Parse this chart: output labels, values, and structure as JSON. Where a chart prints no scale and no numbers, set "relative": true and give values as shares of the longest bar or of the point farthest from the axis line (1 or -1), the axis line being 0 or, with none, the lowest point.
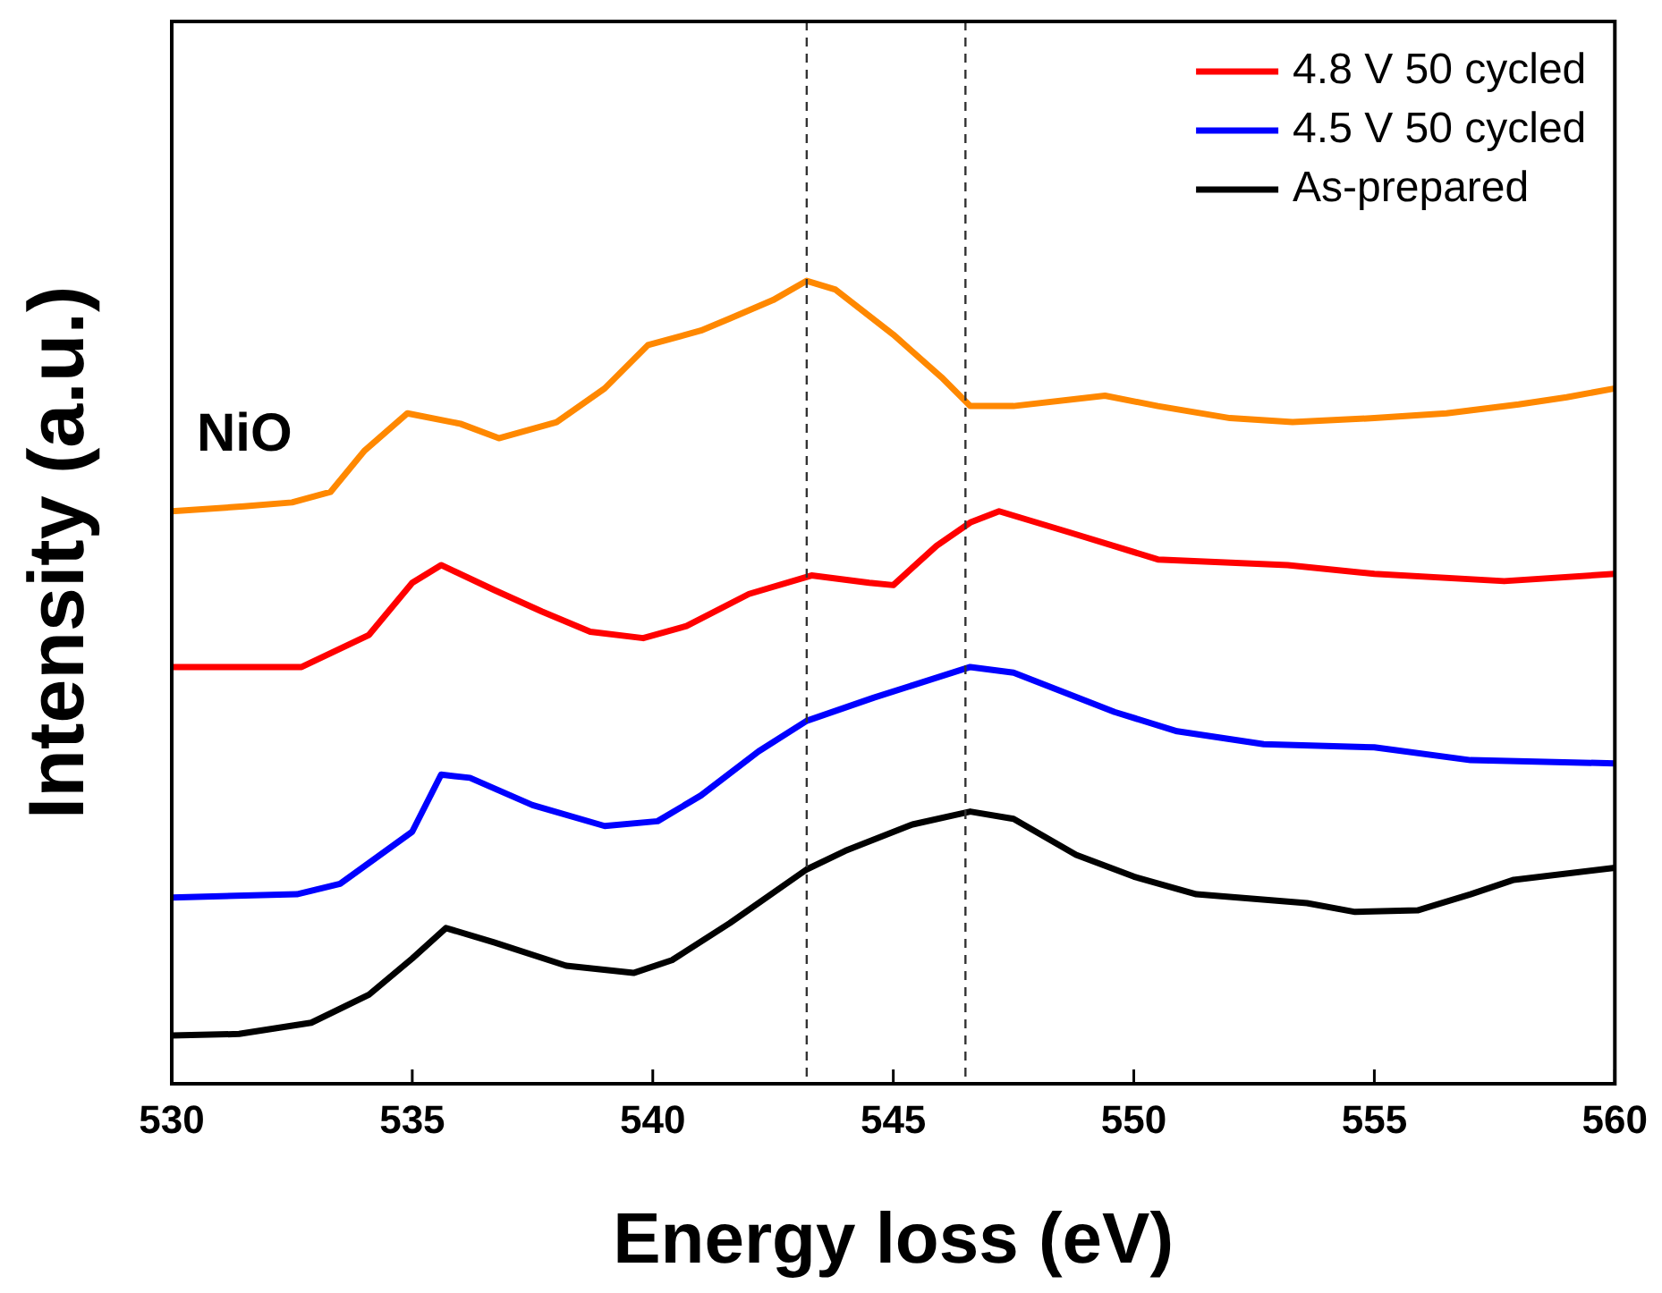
{
  "chart_data": {
    "type": "line",
    "xlabel": "Energy loss (eV)",
    "ylabel": "Intensity (a.u.)",
    "relative": true,
    "xlim": [
      530,
      560
    ],
    "xticks": [
      530,
      535,
      540,
      545,
      550,
      555,
      560
    ],
    "tick_labels": "x",
    "grid": false,
    "legend": "top right",
    "marker": "none",
    "line_style": "solid",
    "annotations": [
      "NiO"
    ],
    "ref_lines": [
      {
        "axis": "x",
        "value": 543.2,
        "color": "#333333",
        "line_style": "dashed"
      },
      {
        "axis": "x",
        "value": 546.5,
        "color": "#333333",
        "line_style": "dashed"
      }
    ],
    "series": [
      {
        "color": "#ff8800",
        "x": [
          530,
          531.5,
          532.5,
          533.3,
          534,
          534.9,
          536,
          536.8,
          538,
          539,
          539.9,
          541,
          541.6,
          542.5,
          543.2,
          543.8,
          545,
          546,
          546.6,
          547.5,
          549.4,
          550.5,
          552,
          553.3,
          555,
          556.5,
          558,
          559,
          560
        ],
        "values": [
          0.713,
          0.719,
          0.724,
          0.737,
          0.788,
          0.835,
          0.822,
          0.804,
          0.824,
          0.866,
          0.92,
          0.938,
          0.953,
          0.976,
          1.0,
          0.989,
          0.933,
          0.88,
          0.844,
          0.844,
          0.857,
          0.844,
          0.829,
          0.824,
          0.829,
          0.835,
          0.846,
          0.855,
          0.866
        ]
      },
      {
        "name": "4.8 V 50 cycled",
        "color": "#ff0000",
        "x": [
          530,
          532.7,
          534.1,
          535,
          535.6,
          536.7,
          537.7,
          538.7,
          539.8,
          540.7,
          542,
          543.3,
          544.5,
          545,
          545.9,
          546.6,
          547.2,
          548.7,
          550.5,
          553.2,
          555,
          557.7,
          560
        ],
        "values": [
          0.519,
          0.519,
          0.559,
          0.624,
          0.646,
          0.615,
          0.588,
          0.563,
          0.555,
          0.57,
          0.61,
          0.633,
          0.624,
          0.621,
          0.67,
          0.699,
          0.713,
          0.686,
          0.653,
          0.646,
          0.635,
          0.626,
          0.635
        ]
      },
      {
        "name": "4.5 V 50 cycled",
        "color": "#0000ff",
        "x": [
          530,
          532.6,
          533.5,
          535,
          535.6,
          536.2,
          537.5,
          539,
          540.1,
          541,
          542.2,
          543.2,
          544.6,
          546.6,
          547.5,
          549.6,
          550.9,
          552.7,
          555,
          557,
          560
        ],
        "values": [
          0.232,
          0.236,
          0.249,
          0.314,
          0.385,
          0.381,
          0.347,
          0.321,
          0.327,
          0.359,
          0.414,
          0.452,
          0.481,
          0.519,
          0.512,
          0.463,
          0.439,
          0.423,
          0.419,
          0.403,
          0.399
        ]
      },
      {
        "name": "As-prepared",
        "color": "#000000",
        "x": [
          530,
          531.4,
          532.9,
          534.1,
          535,
          535.7,
          536.7,
          538.2,
          539.6,
          540.4,
          541.6,
          543.2,
          544,
          545.4,
          546.6,
          547.5,
          548.8,
          550,
          551.3,
          553.6,
          554.6,
          555.9,
          557,
          557.9,
          560
        ],
        "values": [
          0.06,
          0.062,
          0.076,
          0.111,
          0.156,
          0.194,
          0.176,
          0.147,
          0.138,
          0.154,
          0.2,
          0.267,
          0.29,
          0.323,
          0.339,
          0.33,
          0.285,
          0.258,
          0.236,
          0.225,
          0.214,
          0.216,
          0.236,
          0.254,
          0.269
        ]
      }
    ]
  }
}
